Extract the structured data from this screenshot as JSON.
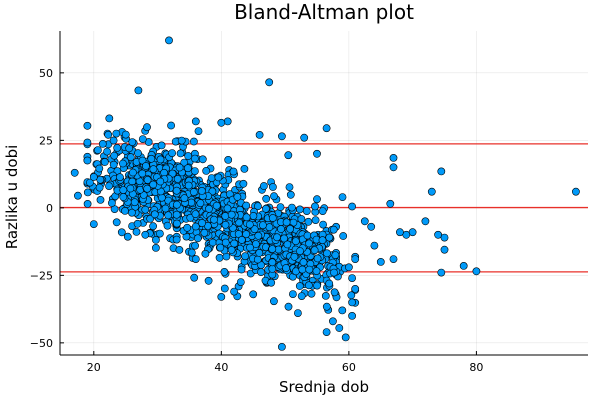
{
  "chart_data": {
    "type": "scatter",
    "title": "Bland-Altman plot",
    "xlabel": "Srednja dob",
    "ylabel": "Razlika u dobi",
    "xlim": [
      14.7,
      97.5
    ],
    "ylim": [
      -54.5,
      65.5
    ],
    "xticks": [
      20,
      40,
      60,
      80
    ],
    "yticks": [
      -50,
      -25,
      0,
      25,
      50
    ],
    "grid": true,
    "legend": "none",
    "colors": {
      "points": "#009af9",
      "reference_lines": "#e8302a"
    },
    "reference_lines": [
      23.7,
      0.1,
      -23.7
    ],
    "cluster_seed": 20240611,
    "explicit_points": [
      {
        "x": 31.8,
        "y": 62.0
      },
      {
        "x": 47.5,
        "y": 46.5
      },
      {
        "x": 27.0,
        "y": 43.5
      },
      {
        "x": 95.6,
        "y": 6.0
      },
      {
        "x": 80.0,
        "y": -23.5
      },
      {
        "x": 78.0,
        "y": -21.5
      },
      {
        "x": 74.5,
        "y": -24.0
      },
      {
        "x": 74.5,
        "y": 13.5
      },
      {
        "x": 73.0,
        "y": 6.0
      },
      {
        "x": 75.0,
        "y": -15.5
      },
      {
        "x": 75.0,
        "y": -11.0
      },
      {
        "x": 74.0,
        "y": -10.0
      },
      {
        "x": 72.0,
        "y": -5.0
      },
      {
        "x": 70.0,
        "y": -9.0
      },
      {
        "x": 69.0,
        "y": -10.0
      },
      {
        "x": 68.0,
        "y": -9.0
      },
      {
        "x": 67.0,
        "y": 15.0
      },
      {
        "x": 67.0,
        "y": 18.5
      },
      {
        "x": 67.0,
        "y": -19.0
      },
      {
        "x": 66.5,
        "y": 1.5
      },
      {
        "x": 65.0,
        "y": -20.0
      },
      {
        "x": 64.0,
        "y": -14.0
      },
      {
        "x": 63.5,
        "y": -7.0
      },
      {
        "x": 62.5,
        "y": -5.0
      },
      {
        "x": 61.0,
        "y": -19.0
      },
      {
        "x": 60.5,
        "y": -26.0
      },
      {
        "x": 56.5,
        "y": 29.5
      },
      {
        "x": 59.0,
        "y": 4.0
      },
      {
        "x": 60.5,
        "y": 0.5
      },
      {
        "x": 57.5,
        "y": -42.0
      },
      {
        "x": 58.5,
        "y": -44.5
      },
      {
        "x": 59.5,
        "y": -48.0
      },
      {
        "x": 56.5,
        "y": -46.0
      },
      {
        "x": 49.5,
        "y": -51.5
      },
      {
        "x": 52.0,
        "y": -39.0
      },
      {
        "x": 60.5,
        "y": -40.0
      },
      {
        "x": 60.5,
        "y": -35.0
      },
      {
        "x": 53.0,
        "y": 26.0
      },
      {
        "x": 49.5,
        "y": 26.5
      },
      {
        "x": 46.0,
        "y": 27.0
      },
      {
        "x": 41.0,
        "y": 32.0
      },
      {
        "x": 40.0,
        "y": 31.5
      },
      {
        "x": 36.0,
        "y": 32.0
      },
      {
        "x": 55.0,
        "y": 20.0
      },
      {
        "x": 50.5,
        "y": 19.5
      },
      {
        "x": 17.0,
        "y": 13.0
      },
      {
        "x": 17.5,
        "y": 4.5
      },
      {
        "x": 20.0,
        "y": -6.0
      },
      {
        "x": 40.0,
        "y": -33.0
      },
      {
        "x": 38.0,
        "y": -27.0
      },
      {
        "x": 42.0,
        "y": -31.0
      },
      {
        "x": 45.0,
        "y": -32.0
      },
      {
        "x": 37.5,
        "y": -17.0
      },
      {
        "x": 36.0,
        "y": -19.0
      },
      {
        "x": 61.0,
        "y": -30.0
      },
      {
        "x": 60.0,
        "y": -22.0
      }
    ],
    "clusters": [
      {
        "n": 600,
        "x_mean": 30,
        "x_sd": 5.0,
        "y_intercept": 26,
        "y_slope": -0.6,
        "y_sd": 8.0,
        "x_min": 19,
        "x_max": 42
      },
      {
        "n": 600,
        "x_mean": 45,
        "x_sd": 5.5,
        "y_intercept": 22,
        "y_slope": -0.7,
        "y_sd": 7.5,
        "x_min": 33,
        "x_max": 58
      },
      {
        "n": 150,
        "x_mean": 54,
        "x_sd": 3.0,
        "y_intercept": 30,
        "y_slope": -0.9,
        "y_sd": 8.0,
        "x_min": 48,
        "x_max": 61
      }
    ]
  }
}
